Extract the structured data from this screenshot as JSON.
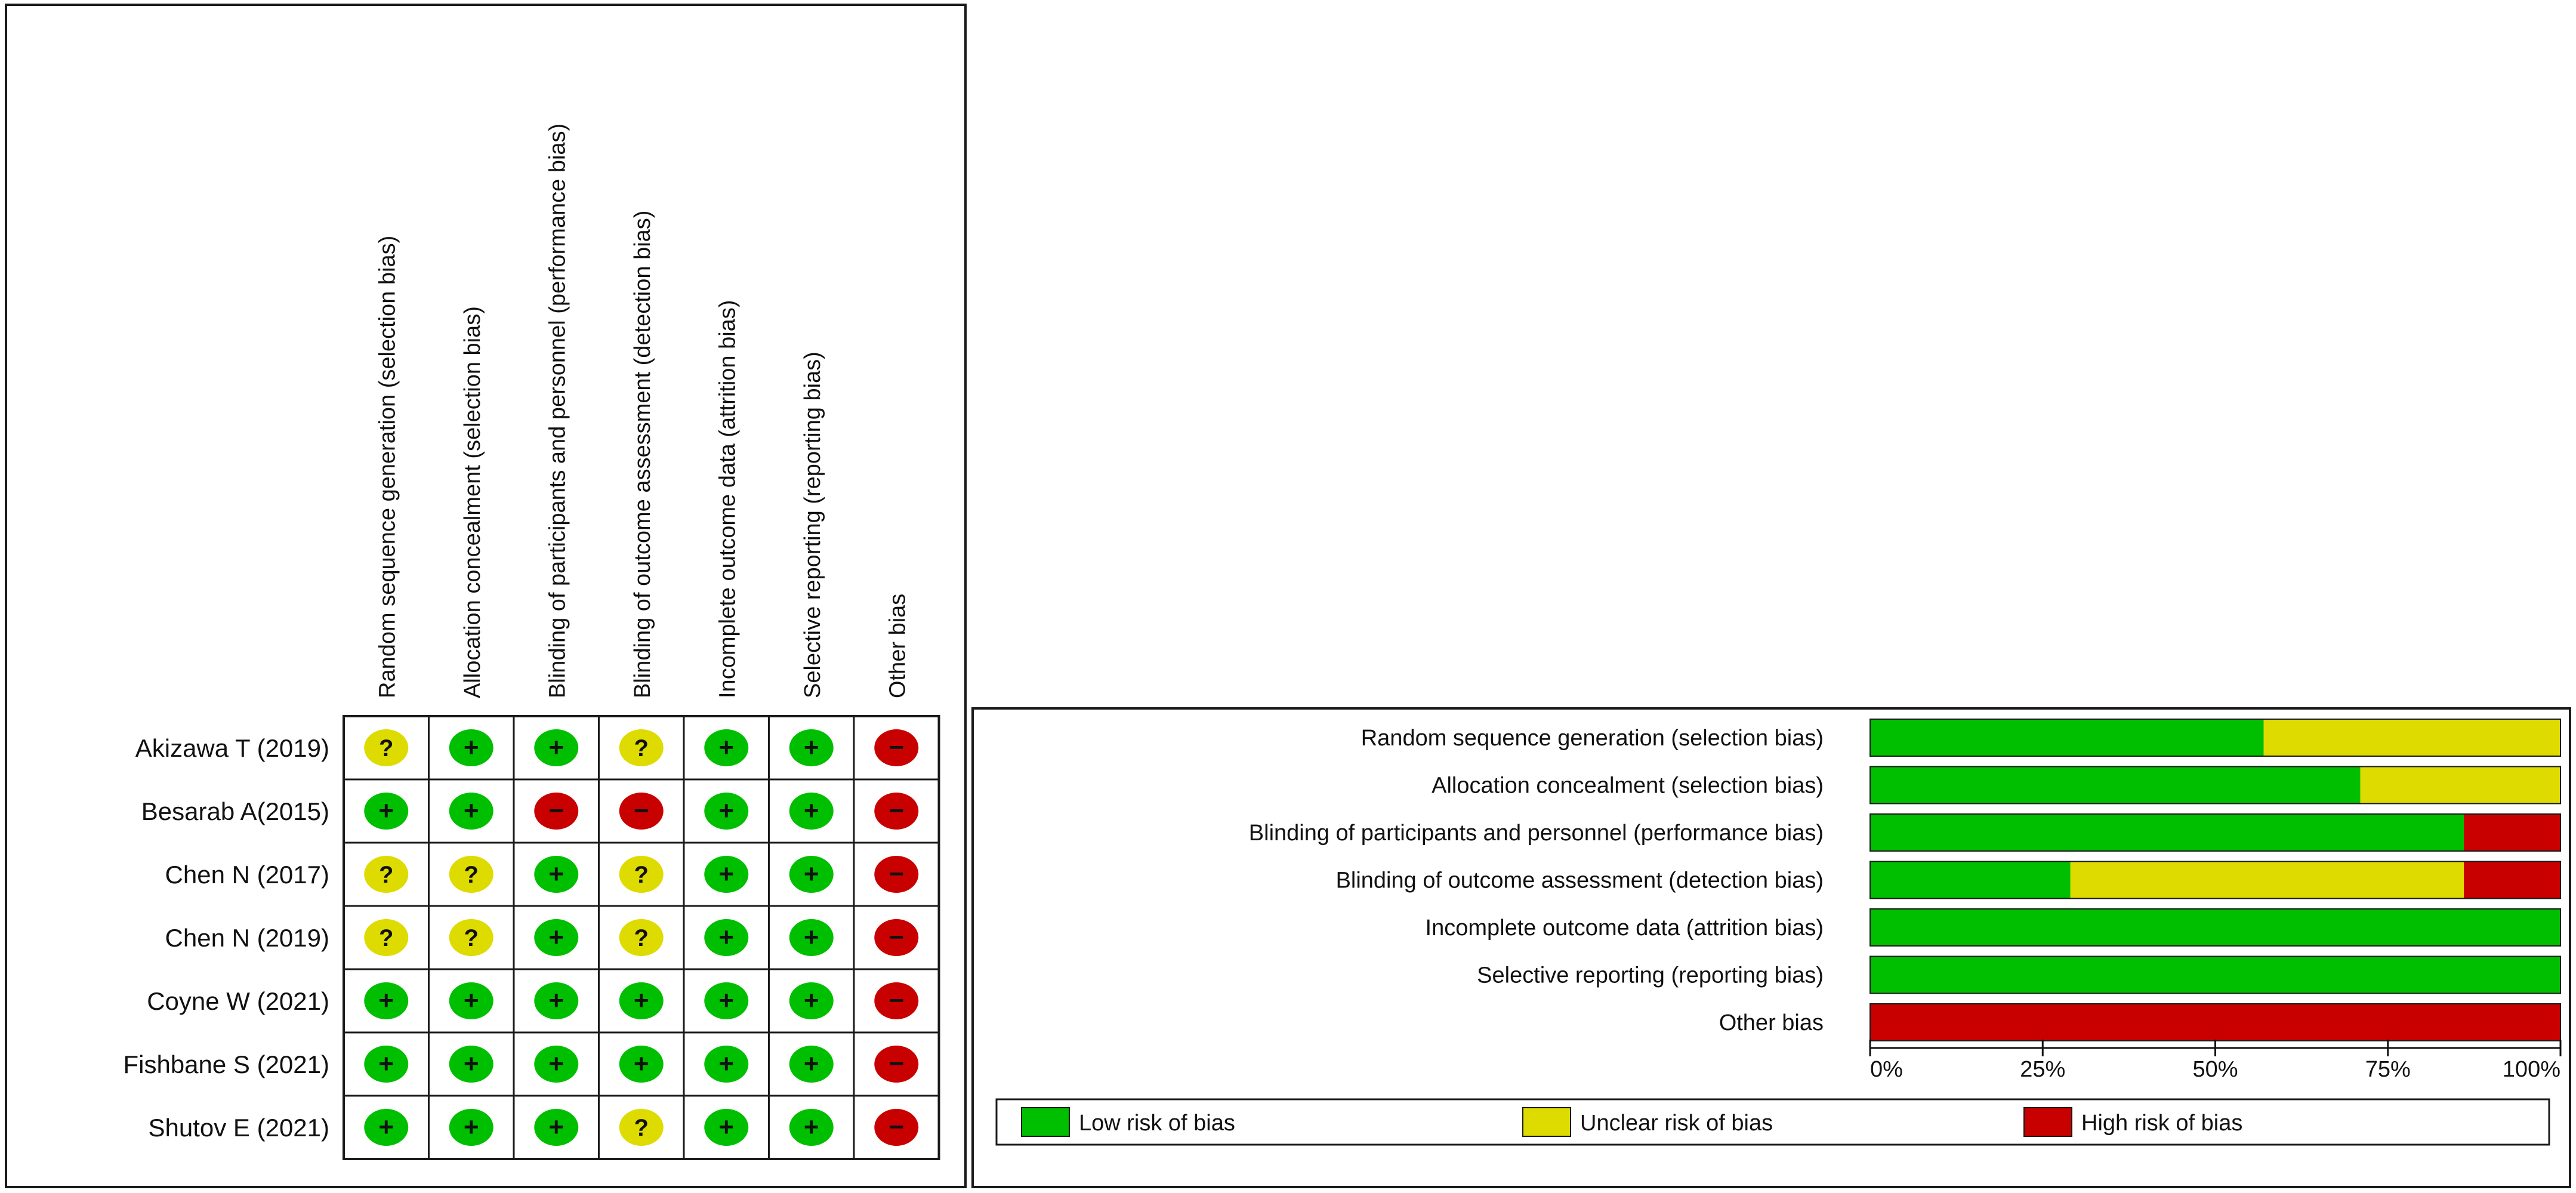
{
  "chart_data": [
    {
      "type": "table",
      "columns": [
        "Random sequence generation (selection bias)",
        "Allocation concealment (selection bias)",
        "Blinding of participants and personnel (performance bias)",
        "Blinding of outcome assessment (detection bias)",
        "Incomplete outcome data (attrition bias)",
        "Selective reporting (reporting bias)",
        "Other bias"
      ],
      "rows": [
        {
          "study": "Akizawa T (2019)",
          "ratings": [
            "unclear",
            "low",
            "low",
            "unclear",
            "low",
            "low",
            "high"
          ]
        },
        {
          "study": "Besarab A(2015)",
          "ratings": [
            "low",
            "low",
            "high",
            "high",
            "low",
            "low",
            "high"
          ]
        },
        {
          "study": "Chen N (2017)",
          "ratings": [
            "unclear",
            "unclear",
            "low",
            "unclear",
            "low",
            "low",
            "high"
          ]
        },
        {
          "study": "Chen N (2019)",
          "ratings": [
            "unclear",
            "unclear",
            "low",
            "unclear",
            "low",
            "low",
            "high"
          ]
        },
        {
          "study": "Coyne W (2021)",
          "ratings": [
            "low",
            "low",
            "low",
            "low",
            "low",
            "low",
            "high"
          ]
        },
        {
          "study": "Fishbane S (2021)",
          "ratings": [
            "low",
            "low",
            "low",
            "low",
            "low",
            "low",
            "high"
          ]
        },
        {
          "study": "Shutov E (2021)",
          "ratings": [
            "low",
            "low",
            "low",
            "unclear",
            "low",
            "low",
            "high"
          ]
        }
      ],
      "symbols": {
        "low": "+",
        "unclear": "?",
        "high": "−"
      }
    },
    {
      "type": "bar",
      "stacked": true,
      "orientation": "horizontal",
      "categories": [
        "Random sequence generation (selection bias)",
        "Allocation concealment (selection bias)",
        "Blinding of participants and personnel (performance bias)",
        "Blinding of outcome assessment (detection bias)",
        "Incomplete outcome data (attrition bias)",
        "Selective reporting (reporting bias)",
        "Other bias"
      ],
      "series": [
        {
          "name": "Low risk of bias",
          "color": "#00bf00",
          "values": [
            57,
            71,
            86,
            29,
            100,
            100,
            0
          ]
        },
        {
          "name": "Unclear risk of bias",
          "color": "#dedb00",
          "values": [
            43,
            29,
            0,
            57,
            0,
            0,
            0
          ]
        },
        {
          "name": "High risk of bias",
          "color": "#c80000",
          "values": [
            0,
            0,
            14,
            14,
            0,
            0,
            100
          ]
        }
      ],
      "xlim": [
        0,
        100
      ],
      "xticks": [
        "0%",
        "25%",
        "50%",
        "75%",
        "100%"
      ],
      "legend_position": "bottom"
    }
  ],
  "colors": {
    "low": "#00bf00",
    "unclear": "#dedb00",
    "high": "#c80000",
    "border": "#1a1a1a"
  }
}
